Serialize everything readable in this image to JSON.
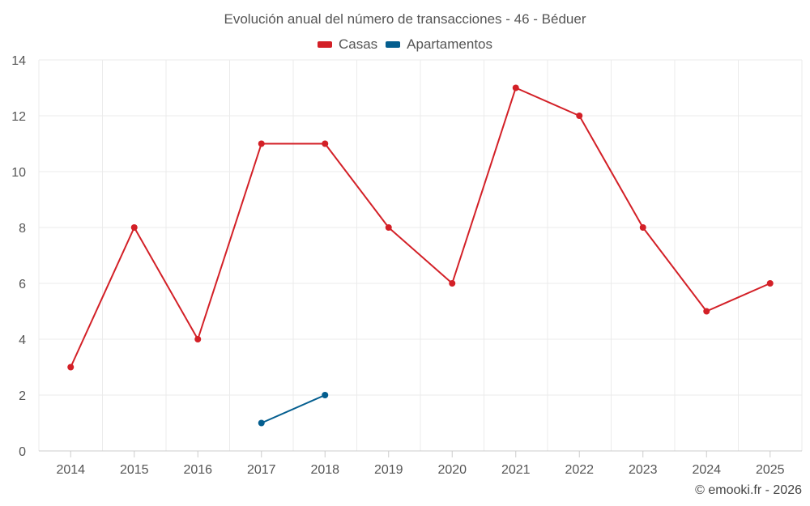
{
  "chart_data": {
    "type": "line",
    "title": "Evolución anual del número de transacciones - 46 - Béduer",
    "categories": [
      "2014",
      "2015",
      "2016",
      "2017",
      "2018",
      "2019",
      "2020",
      "2021",
      "2022",
      "2023",
      "2024",
      "2025"
    ],
    "series": [
      {
        "name": "Casas",
        "color": "#d32027",
        "values": [
          3,
          8,
          4,
          11,
          11,
          8,
          6,
          13,
          12,
          8,
          5,
          6
        ]
      },
      {
        "name": "Apartamentos",
        "color": "#045e8f",
        "values": [
          null,
          null,
          null,
          1,
          2,
          null,
          null,
          null,
          null,
          null,
          null,
          null
        ]
      }
    ],
    "ylim": [
      0,
      14
    ],
    "yticks": [
      0,
      2,
      4,
      6,
      8,
      10,
      12,
      14
    ],
    "xlabel": "",
    "ylabel": "",
    "grid": true,
    "legend": "top-center"
  },
  "credit": "© emooki.fr - 2026"
}
